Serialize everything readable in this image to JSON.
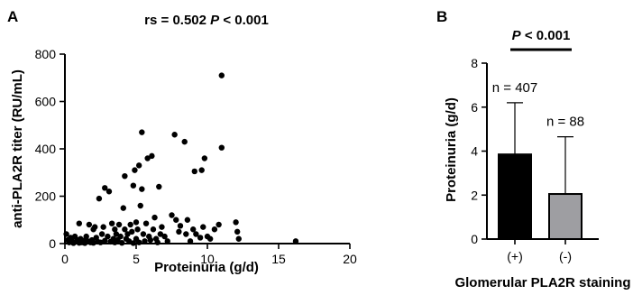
{
  "chart_data": [
    {
      "panel": "A",
      "type": "scatter",
      "title_parts": [
        "rs = 0.502 ",
        "P",
        " < 0.001"
      ],
      "xlabel": "Proteinuria (g/d)",
      "ylabel": "anti-PLA2R titer (RU/mL)",
      "xlim": [
        0,
        20
      ],
      "ylim": [
        0,
        800
      ],
      "xticks": [
        0,
        5,
        10,
        15,
        20
      ],
      "yticks": [
        0,
        200,
        400,
        600,
        800
      ],
      "grid": false,
      "points": [
        [
          0.1,
          40
        ],
        [
          0.2,
          15
        ],
        [
          0.3,
          5
        ],
        [
          0.4,
          25
        ],
        [
          0.5,
          10
        ],
        [
          0.6,
          2
        ],
        [
          0.7,
          30
        ],
        [
          0.8,
          8
        ],
        [
          0.9,
          15
        ],
        [
          1.0,
          3
        ],
        [
          1.0,
          85
        ],
        [
          1.1,
          20
        ],
        [
          1.2,
          5
        ],
        [
          1.3,
          12
        ],
        [
          1.4,
          2
        ],
        [
          1.5,
          30
        ],
        [
          1.6,
          10
        ],
        [
          1.7,
          80
        ],
        [
          1.8,
          5
        ],
        [
          1.9,
          15
        ],
        [
          2.0,
          60
        ],
        [
          2.0,
          3
        ],
        [
          2.1,
          70
        ],
        [
          2.2,
          25
        ],
        [
          2.3,
          8
        ],
        [
          2.4,
          190
        ],
        [
          2.5,
          5
        ],
        [
          2.6,
          40
        ],
        [
          2.7,
          70
        ],
        [
          2.8,
          12
        ],
        [
          2.8,
          235
        ],
        [
          3.0,
          30
        ],
        [
          3.1,
          220
        ],
        [
          3.2,
          8
        ],
        [
          3.3,
          85
        ],
        [
          3.4,
          20
        ],
        [
          3.5,
          60
        ],
        [
          3.5,
          5
        ],
        [
          3.6,
          40
        ],
        [
          3.7,
          15
        ],
        [
          3.8,
          80
        ],
        [
          3.9,
          30
        ],
        [
          4.0,
          3
        ],
        [
          4.1,
          150
        ],
        [
          4.2,
          60
        ],
        [
          4.2,
          285
        ],
        [
          4.3,
          20
        ],
        [
          4.4,
          40
        ],
        [
          4.5,
          10
        ],
        [
          4.6,
          80
        ],
        [
          4.7,
          50
        ],
        [
          4.8,
          2
        ],
        [
          4.8,
          245
        ],
        [
          4.9,
          310
        ],
        [
          5.0,
          90
        ],
        [
          5.0,
          20
        ],
        [
          5.1,
          60
        ],
        [
          5.2,
          5
        ],
        [
          5.2,
          330
        ],
        [
          5.3,
          160
        ],
        [
          5.4,
          470
        ],
        [
          5.4,
          230
        ],
        [
          5.5,
          40
        ],
        [
          5.6,
          10
        ],
        [
          5.7,
          85
        ],
        [
          5.8,
          360
        ],
        [
          5.9,
          30
        ],
        [
          6.0,
          15
        ],
        [
          6.1,
          370
        ],
        [
          6.2,
          60
        ],
        [
          6.3,
          110
        ],
        [
          6.4,
          20
        ],
        [
          6.5,
          5
        ],
        [
          6.6,
          240
        ],
        [
          6.7,
          40
        ],
        [
          6.8,
          70
        ],
        [
          7.0,
          30
        ],
        [
          7.2,
          10
        ],
        [
          7.5,
          120
        ],
        [
          7.7,
          460
        ],
        [
          7.8,
          100
        ],
        [
          8.0,
          50
        ],
        [
          8.1,
          75
        ],
        [
          8.4,
          430
        ],
        [
          8.5,
          40
        ],
        [
          8.6,
          100
        ],
        [
          8.8,
          10
        ],
        [
          9.0,
          60
        ],
        [
          9.1,
          305
        ],
        [
          9.2,
          40
        ],
        [
          9.5,
          25
        ],
        [
          9.6,
          310
        ],
        [
          9.7,
          70
        ],
        [
          9.8,
          360
        ],
        [
          10.0,
          30
        ],
        [
          10.2,
          20
        ],
        [
          10.5,
          60
        ],
        [
          10.8,
          80
        ],
        [
          11.0,
          710
        ],
        [
          11.0,
          405
        ],
        [
          12.0,
          90
        ],
        [
          12.1,
          50
        ],
        [
          12.2,
          20
        ],
        [
          16.2,
          10
        ]
      ]
    },
    {
      "panel": "B",
      "type": "bar",
      "title_parts": [
        "P",
        " < 0.001"
      ],
      "xlabel": "Glomerular PLA2R staining",
      "ylabel": "Proteinuria (g/d)",
      "ylim": [
        0,
        8
      ],
      "yticks": [
        0,
        2,
        4,
        6,
        8
      ],
      "categories": [
        "(+)",
        "(-)"
      ],
      "values": [
        3.85,
        2.05
      ],
      "error_upper": [
        6.2,
        4.65
      ],
      "n_labels": [
        "n = 407",
        "n = 88"
      ],
      "colors": [
        "#000000",
        "#9e9ea2"
      ],
      "grid": false
    }
  ]
}
